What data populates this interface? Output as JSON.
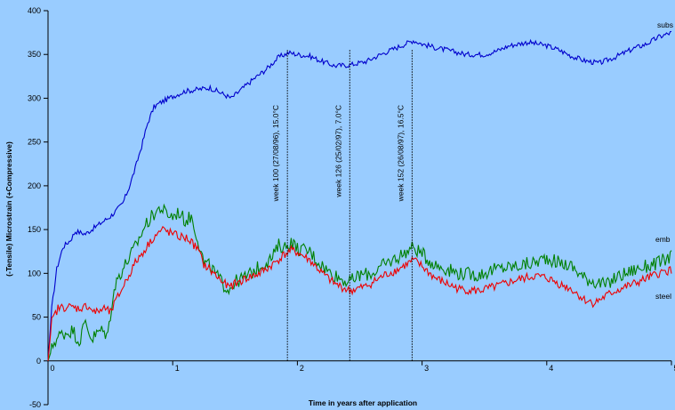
{
  "chart_data": {
    "type": "line",
    "title": "",
    "xlabel": "Time in years after application",
    "ylabel": "(-Tensile) Microstrain (+Compressive)",
    "xlim": [
      0,
      5
    ],
    "ylim": [
      -50,
      400
    ],
    "x_ticks": [
      0,
      1,
      2,
      3,
      4,
      5
    ],
    "y_ticks": [
      -50,
      0,
      50,
      100,
      150,
      200,
      250,
      300,
      350,
      400
    ],
    "grid": false,
    "legend": "none",
    "series": [
      {
        "name": "subs",
        "color": "#0000cc",
        "points": [
          [
            0,
            0
          ],
          [
            0.03,
            60
          ],
          [
            0.07,
            105
          ],
          [
            0.12,
            130
          ],
          [
            0.18,
            138
          ],
          [
            0.22,
            148
          ],
          [
            0.3,
            145
          ],
          [
            0.4,
            155
          ],
          [
            0.5,
            165
          ],
          [
            0.55,
            172
          ],
          [
            0.6,
            180
          ],
          [
            0.65,
            198
          ],
          [
            0.7,
            220
          ],
          [
            0.75,
            245
          ],
          [
            0.8,
            272
          ],
          [
            0.85,
            290
          ],
          [
            0.9,
            295
          ],
          [
            1.0,
            302
          ],
          [
            1.1,
            308
          ],
          [
            1.2,
            310
          ],
          [
            1.3,
            312
          ],
          [
            1.4,
            305
          ],
          [
            1.47,
            300
          ],
          [
            1.55,
            310
          ],
          [
            1.65,
            322
          ],
          [
            1.75,
            333
          ],
          [
            1.85,
            347
          ],
          [
            1.93,
            352
          ],
          [
            2.0,
            350
          ],
          [
            2.1,
            348
          ],
          [
            2.2,
            342
          ],
          [
            2.3,
            337
          ],
          [
            2.42,
            338
          ],
          [
            2.55,
            342
          ],
          [
            2.7,
            352
          ],
          [
            2.8,
            358
          ],
          [
            2.93,
            366
          ],
          [
            3.0,
            362
          ],
          [
            3.1,
            358
          ],
          [
            3.2,
            355
          ],
          [
            3.35,
            350
          ],
          [
            3.5,
            350
          ],
          [
            3.6,
            354
          ],
          [
            3.7,
            360
          ],
          [
            3.85,
            364
          ],
          [
            4.0,
            360
          ],
          [
            4.1,
            355
          ],
          [
            4.2,
            348
          ],
          [
            4.3,
            343
          ],
          [
            4.42,
            340
          ],
          [
            4.55,
            347
          ],
          [
            4.7,
            357
          ],
          [
            4.8,
            362
          ],
          [
            4.9,
            370
          ],
          [
            5.0,
            375
          ]
        ]
      },
      {
        "name": "emb",
        "color": "#008000",
        "points": [
          [
            0,
            0
          ],
          [
            0.05,
            22
          ],
          [
            0.1,
            30
          ],
          [
            0.2,
            35
          ],
          [
            0.25,
            22
          ],
          [
            0.3,
            45
          ],
          [
            0.35,
            25
          ],
          [
            0.42,
            35
          ],
          [
            0.48,
            30
          ],
          [
            0.52,
            75
          ],
          [
            0.56,
            95
          ],
          [
            0.62,
            110
          ],
          [
            0.7,
            130
          ],
          [
            0.78,
            155
          ],
          [
            0.85,
            168
          ],
          [
            0.9,
            175
          ],
          [
            0.95,
            168
          ],
          [
            1.0,
            165
          ],
          [
            1.05,
            170
          ],
          [
            1.1,
            160
          ],
          [
            1.15,
            165
          ],
          [
            1.2,
            140
          ],
          [
            1.25,
            112
          ],
          [
            1.3,
            108
          ],
          [
            1.4,
            88
          ],
          [
            1.45,
            82
          ],
          [
            1.5,
            90
          ],
          [
            1.6,
            97
          ],
          [
            1.7,
            108
          ],
          [
            1.8,
            118
          ],
          [
            1.85,
            132
          ],
          [
            1.9,
            130
          ],
          [
            1.95,
            136
          ],
          [
            2.0,
            128
          ],
          [
            2.1,
            125
          ],
          [
            2.15,
            116
          ],
          [
            2.25,
            102
          ],
          [
            2.35,
            94
          ],
          [
            2.42,
            90
          ],
          [
            2.5,
            98
          ],
          [
            2.6,
            100
          ],
          [
            2.7,
            110
          ],
          [
            2.8,
            118
          ],
          [
            2.93,
            130
          ],
          [
            3.0,
            122
          ],
          [
            3.1,
            110
          ],
          [
            3.2,
            105
          ],
          [
            3.3,
            100
          ],
          [
            3.45,
            98
          ],
          [
            3.6,
            105
          ],
          [
            3.75,
            108
          ],
          [
            3.9,
            112
          ],
          [
            4.0,
            118
          ],
          [
            4.1,
            112
          ],
          [
            4.2,
            108
          ],
          [
            4.3,
            95
          ],
          [
            4.4,
            90
          ],
          [
            4.48,
            86
          ],
          [
            4.55,
            95
          ],
          [
            4.7,
            104
          ],
          [
            4.8,
            108
          ],
          [
            4.9,
            112
          ],
          [
            5.0,
            120
          ]
        ]
      },
      {
        "name": "steel",
        "color": "#ee0000",
        "points": [
          [
            0,
            0
          ],
          [
            0.03,
            45
          ],
          [
            0.08,
            60
          ],
          [
            0.15,
            62
          ],
          [
            0.25,
            60
          ],
          [
            0.32,
            63
          ],
          [
            0.38,
            55
          ],
          [
            0.45,
            60
          ],
          [
            0.5,
            55
          ],
          [
            0.55,
            70
          ],
          [
            0.62,
            90
          ],
          [
            0.7,
            112
          ],
          [
            0.78,
            128
          ],
          [
            0.85,
            142
          ],
          [
            0.92,
            150
          ],
          [
            1.0,
            145
          ],
          [
            1.05,
            142
          ],
          [
            1.12,
            140
          ],
          [
            1.2,
            128
          ],
          [
            1.25,
            110
          ],
          [
            1.3,
            104
          ],
          [
            1.4,
            90
          ],
          [
            1.45,
            84
          ],
          [
            1.5,
            88
          ],
          [
            1.6,
            95
          ],
          [
            1.7,
            100
          ],
          [
            1.8,
            110
          ],
          [
            1.9,
            122
          ],
          [
            1.95,
            126
          ],
          [
            2.0,
            124
          ],
          [
            2.1,
            115
          ],
          [
            2.2,
            100
          ],
          [
            2.3,
            88
          ],
          [
            2.42,
            80
          ],
          [
            2.55,
            85
          ],
          [
            2.7,
            98
          ],
          [
            2.8,
            104
          ],
          [
            2.93,
            115
          ],
          [
            3.0,
            108
          ],
          [
            3.1,
            95
          ],
          [
            3.2,
            88
          ],
          [
            3.3,
            82
          ],
          [
            3.45,
            80
          ],
          [
            3.6,
            85
          ],
          [
            3.75,
            92
          ],
          [
            3.9,
            97
          ],
          [
            4.0,
            95
          ],
          [
            4.1,
            88
          ],
          [
            4.2,
            82
          ],
          [
            4.3,
            70
          ],
          [
            4.38,
            66
          ],
          [
            4.45,
            72
          ],
          [
            4.55,
            80
          ],
          [
            4.7,
            88
          ],
          [
            4.8,
            94
          ],
          [
            4.9,
            100
          ],
          [
            5.0,
            104
          ]
        ]
      }
    ],
    "annotations": [
      {
        "x": 1.92,
        "text": "week 100 (27/08/96), 15.0°C"
      },
      {
        "x": 2.42,
        "text": "week 126 (25/02/97), 7.0°C"
      },
      {
        "x": 2.92,
        "text": "week 152 (26/08/97), 16.5°C"
      }
    ]
  }
}
